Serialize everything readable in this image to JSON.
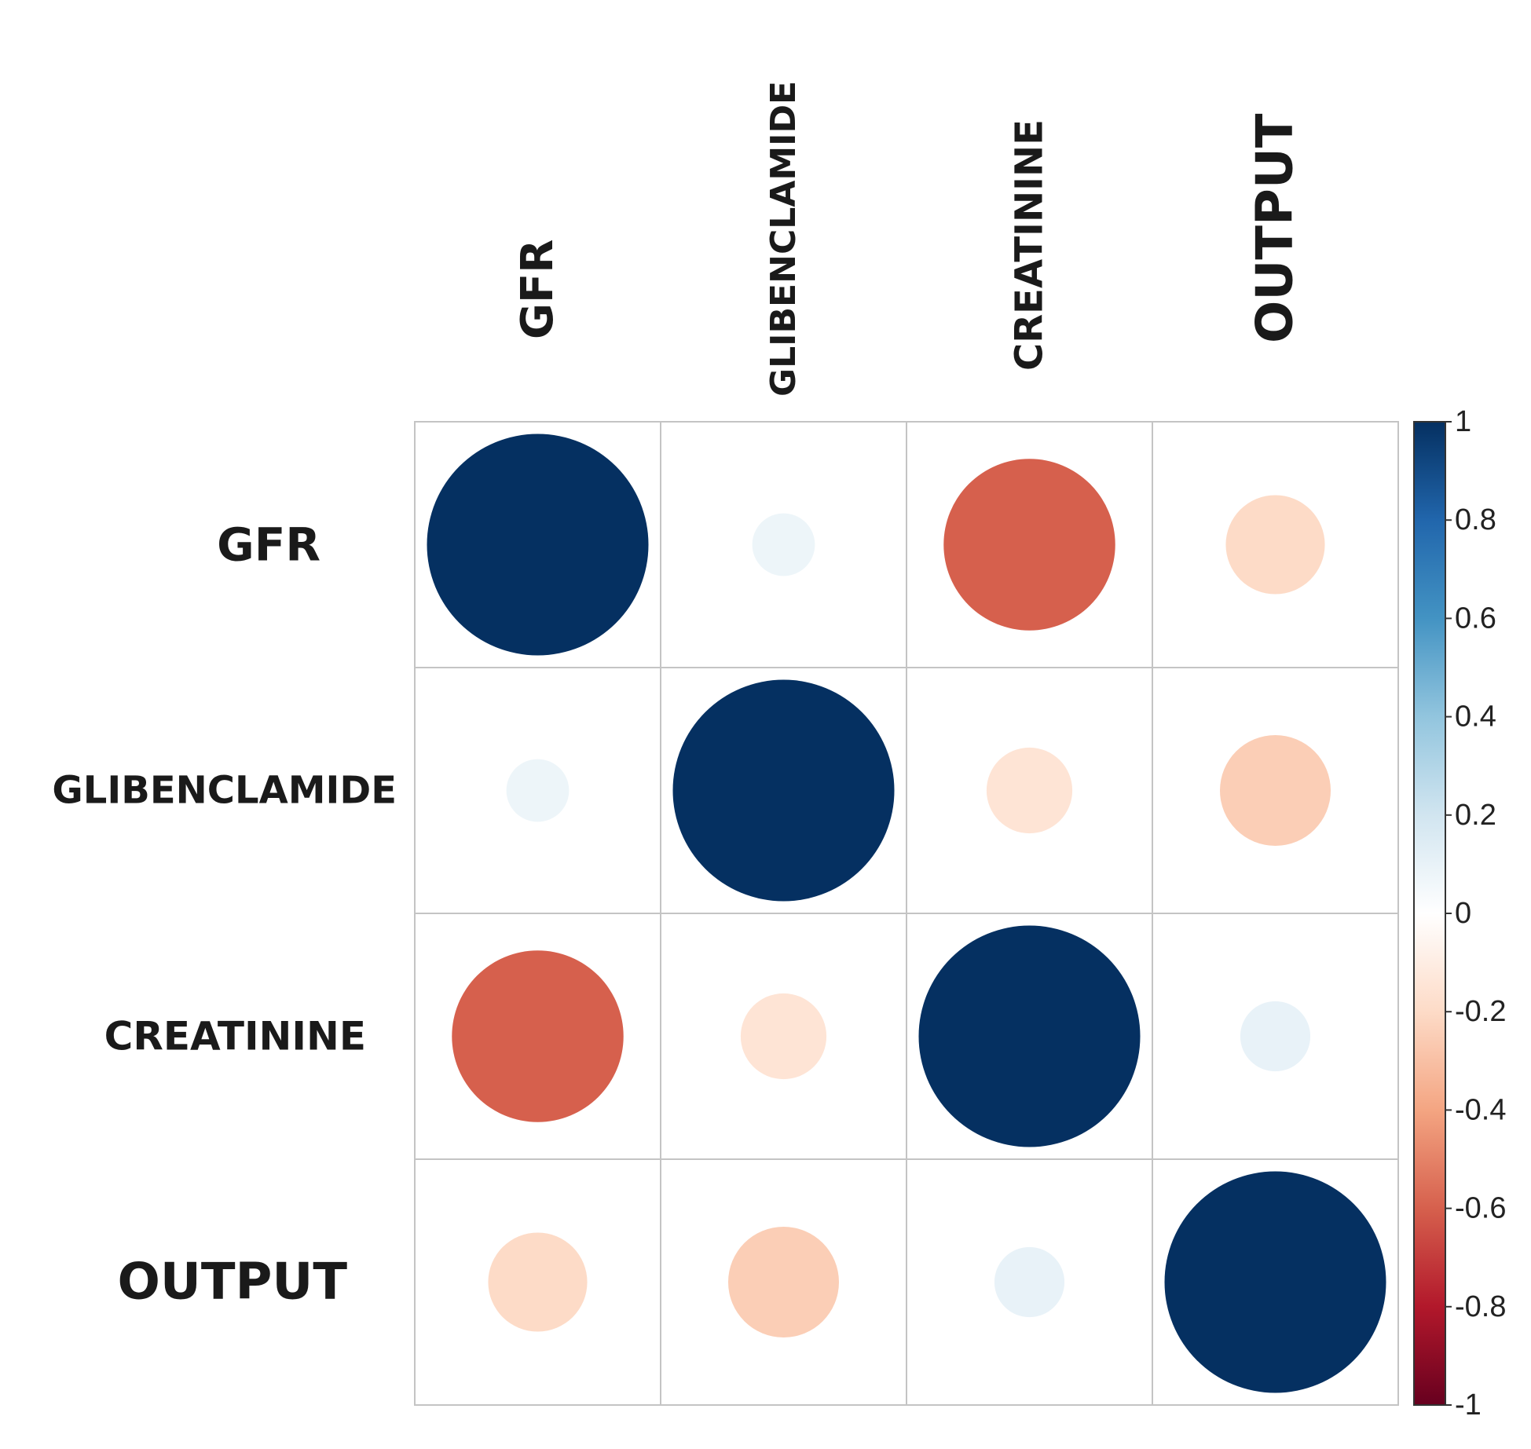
{
  "chart_data": {
    "type": "heatmap",
    "subtype": "correlation-circle-matrix",
    "variables": [
      "GFR",
      "GLIBENCLAMIDE",
      "CREATININE",
      "OUTPUT"
    ],
    "matrix": [
      [
        1.0,
        0.08,
        -0.6,
        -0.2
      ],
      [
        0.08,
        1.0,
        -0.15,
        -0.25
      ],
      [
        -0.6,
        -0.15,
        1.0,
        0.1
      ],
      [
        -0.2,
        -0.25,
        0.1,
        1.0
      ]
    ],
    "colorbar": {
      "range": [
        -1,
        1
      ],
      "ticks": [
        "1",
        "0.8",
        "0.6",
        "0.4",
        "0.2",
        "0",
        "-0.2",
        "-0.4",
        "-0.6",
        "-0.8",
        "-1"
      ],
      "tick_values": [
        1,
        0.8,
        0.6,
        0.4,
        0.2,
        0,
        -0.2,
        -0.4,
        -0.6,
        -0.8,
        -1
      ],
      "stops": [
        "#67001F",
        "#B2182B",
        "#D6604D",
        "#F4A582",
        "#FDDBC7",
        "#FFFFFF",
        "#D1E5F0",
        "#92C5DE",
        "#4393C3",
        "#2166AC",
        "#053061"
      ]
    },
    "grid": true,
    "legend": "right"
  }
}
